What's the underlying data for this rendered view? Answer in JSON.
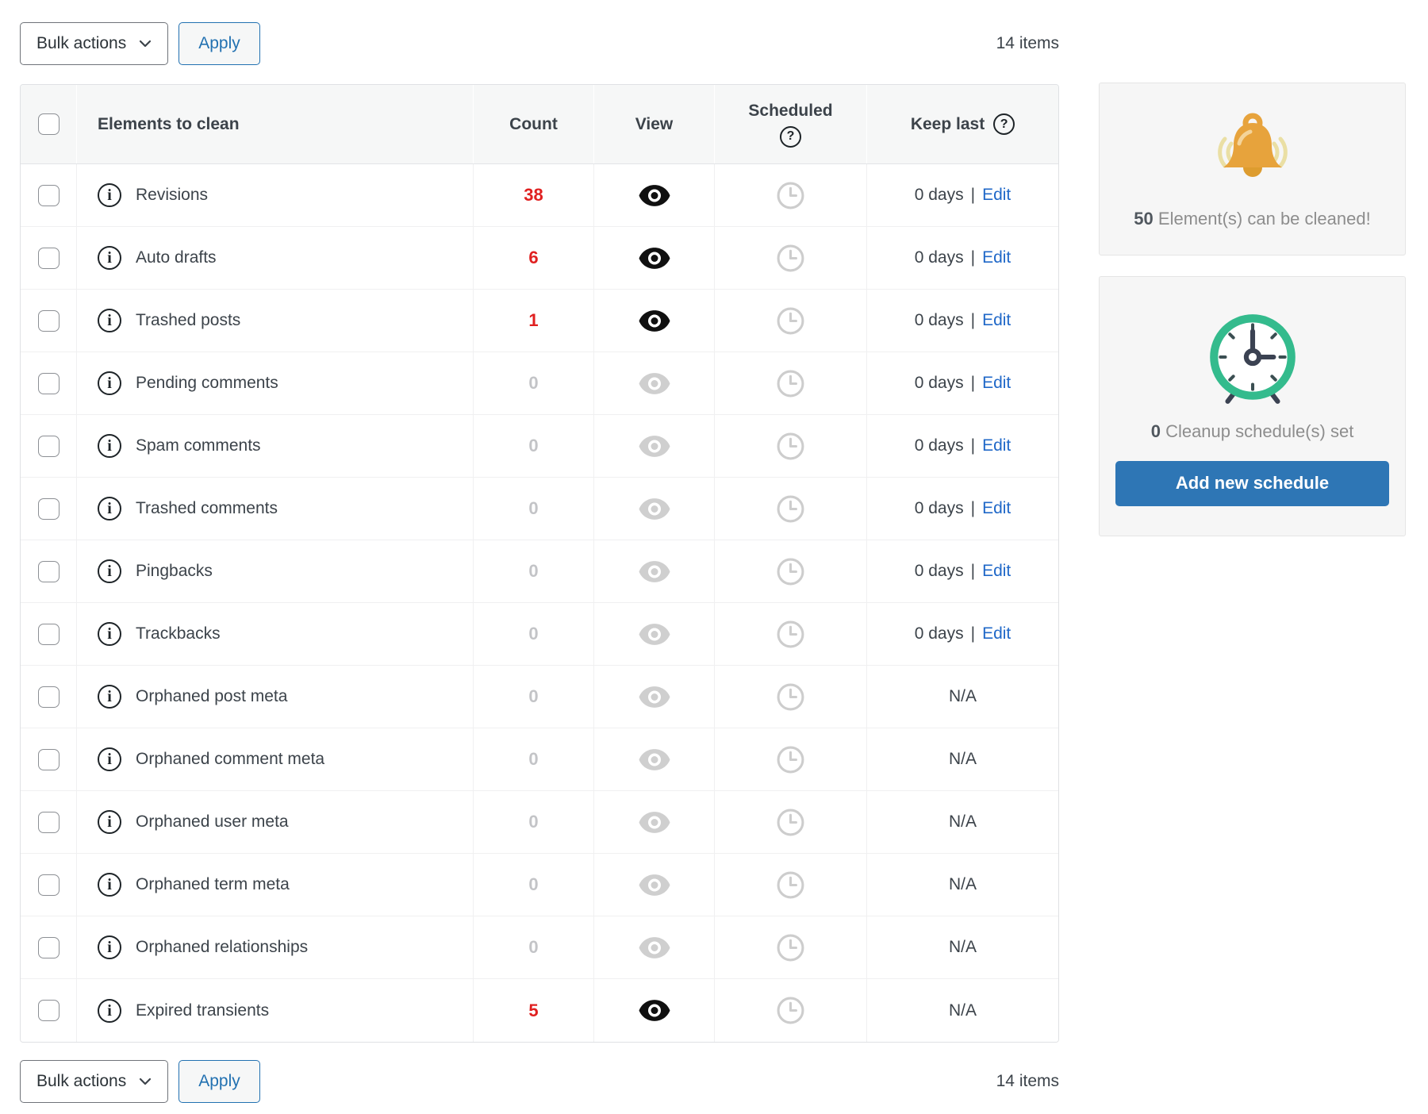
{
  "toolbar": {
    "bulk_actions_label": "Bulk actions",
    "apply_label": "Apply",
    "items_count": "14 items"
  },
  "table": {
    "headers": {
      "elements": "Elements to clean",
      "count": "Count",
      "view": "View",
      "scheduled": "Scheduled",
      "keep_last": "Keep last"
    },
    "info_glyph": "i",
    "help_glyph": "?",
    "keep_last_separator": "|",
    "rows": [
      {
        "label": "Revisions",
        "count": "38",
        "active": true,
        "keep_last": "0 days",
        "edit_label": "Edit"
      },
      {
        "label": "Auto drafts",
        "count": "6",
        "active": true,
        "keep_last": "0 days",
        "edit_label": "Edit"
      },
      {
        "label": "Trashed posts",
        "count": "1",
        "active": true,
        "keep_last": "0 days",
        "edit_label": "Edit"
      },
      {
        "label": "Pending comments",
        "count": "0",
        "active": false,
        "keep_last": "0 days",
        "edit_label": "Edit"
      },
      {
        "label": "Spam comments",
        "count": "0",
        "active": false,
        "keep_last": "0 days",
        "edit_label": "Edit"
      },
      {
        "label": "Trashed comments",
        "count": "0",
        "active": false,
        "keep_last": "0 days",
        "edit_label": "Edit"
      },
      {
        "label": "Pingbacks",
        "count": "0",
        "active": false,
        "keep_last": "0 days",
        "edit_label": "Edit"
      },
      {
        "label": "Trackbacks",
        "count": "0",
        "active": false,
        "keep_last": "0 days",
        "edit_label": "Edit"
      },
      {
        "label": "Orphaned post meta",
        "count": "0",
        "active": false,
        "keep_last": "N/A"
      },
      {
        "label": "Orphaned comment meta",
        "count": "0",
        "active": false,
        "keep_last": "N/A"
      },
      {
        "label": "Orphaned user meta",
        "count": "0",
        "active": false,
        "keep_last": "N/A"
      },
      {
        "label": "Orphaned term meta",
        "count": "0",
        "active": false,
        "keep_last": "N/A"
      },
      {
        "label": "Orphaned relationships",
        "count": "0",
        "active": false,
        "keep_last": "N/A"
      },
      {
        "label": "Expired transients",
        "count": "5",
        "active": true,
        "keep_last": "N/A"
      }
    ]
  },
  "sidebar": {
    "cleanable": {
      "count": "50",
      "text": "Element(s) can be cleaned!"
    },
    "schedule": {
      "count": "0",
      "text": "Cleanup schedule(s) set",
      "button_label": "Add new schedule"
    }
  },
  "colors": {
    "count_red": "#e02020",
    "count_zero": "#c3c4c7",
    "link_blue": "#2068c8",
    "apply_blue": "#2271b1",
    "button_blue": "#2e76b5",
    "bell_orange": "#e7a33c",
    "clock_green": "#34bb8d",
    "header_bg": "#f6f7f7",
    "card_bg": "#f6f6f6"
  }
}
